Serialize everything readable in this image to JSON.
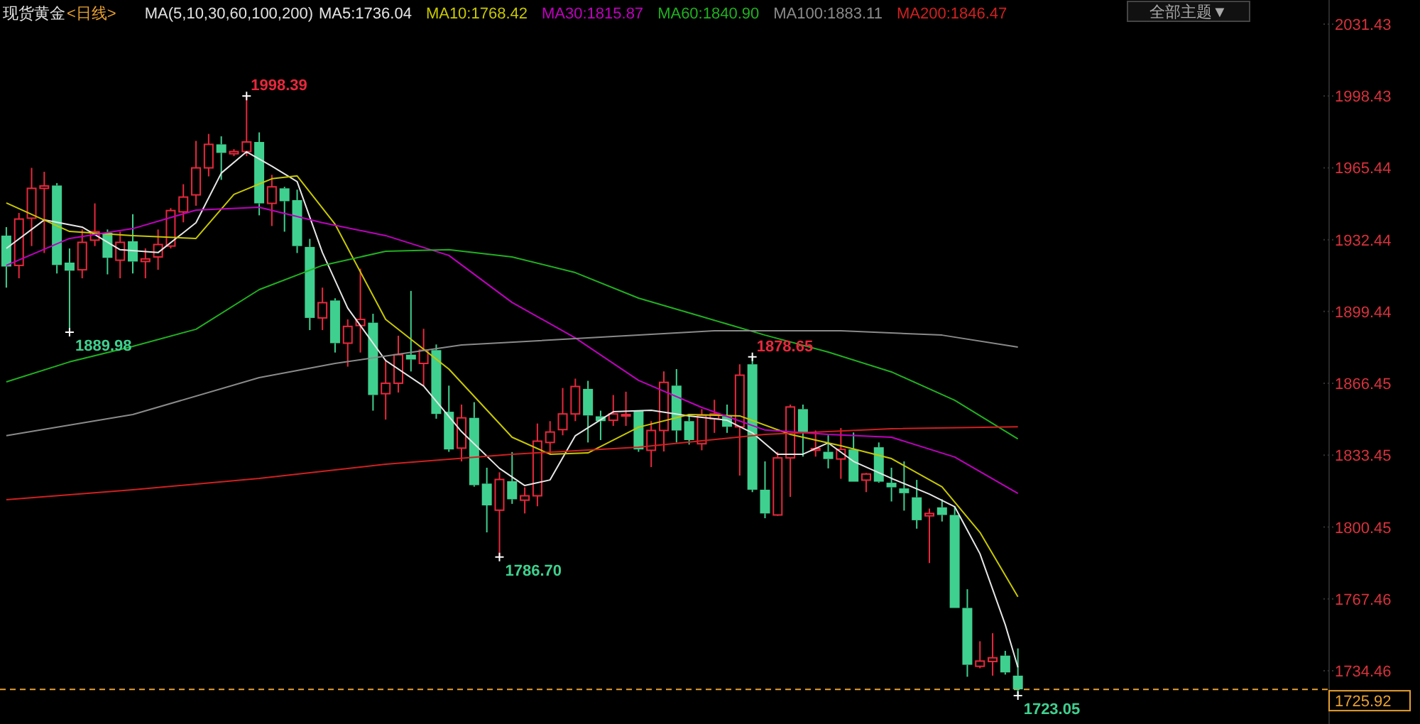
{
  "chart_data": {
    "type": "candlestick",
    "title": "现货黄金",
    "subtitle": "<日线>",
    "legend_title": "MA(5,10,30,60,100,200)",
    "legend": "top",
    "categories": [
      null,
      null,
      null,
      null,
      null,
      null,
      null,
      null,
      null,
      null,
      null,
      null,
      null,
      null,
      null,
      null,
      null,
      null,
      null,
      null,
      null,
      null,
      null,
      null,
      null,
      null,
      null,
      null,
      null,
      null,
      null,
      null,
      null,
      null,
      null,
      null,
      null,
      null,
      null,
      null,
      null,
      null,
      null,
      null,
      null,
      null,
      null,
      null,
      null,
      null,
      null,
      null,
      null,
      null,
      null,
      null,
      null,
      null,
      null,
      null,
      null,
      null,
      null,
      null,
      null,
      null,
      null,
      null,
      null,
      null,
      null,
      null,
      null,
      null,
      null,
      null,
      null,
      null,
      null,
      null,
      null,
      null,
      null,
      null,
      null,
      null,
      null,
      null,
      null,
      null,
      null,
      null,
      null,
      null,
      null,
      null,
      null,
      null,
      null,
      null,
      null,
      null,
      null,
      null,
      null
    ],
    "ohlc": [
      [
        1934.3,
        1938.2,
        1910.4,
        1920.1
      ],
      [
        1920.6,
        1944.7,
        1914.7,
        1941.9
      ],
      [
        1942.3,
        1965.4,
        1929.5,
        1956.0
      ],
      [
        1956.0,
        1963.6,
        1926.3,
        1957.1
      ],
      [
        1957.3,
        1958.4,
        1916.9,
        1920.8
      ],
      [
        1921.9,
        1928.4,
        1889.98,
        1918.2
      ],
      [
        1918.6,
        1937.1,
        1914.7,
        1931.2
      ],
      [
        1932.2,
        1949.1,
        1929.5,
        1936.1
      ],
      [
        1935.6,
        1937.1,
        1916.5,
        1924.1
      ],
      [
        1923.0,
        1936.1,
        1914.7,
        1931.2
      ],
      [
        1931.7,
        1944.1,
        1916.9,
        1922.4
      ],
      [
        1922.4,
        1928.4,
        1914.7,
        1923.6
      ],
      [
        1924.5,
        1937.1,
        1918.6,
        1930.2
      ],
      [
        1929.5,
        1946.9,
        1928.4,
        1945.8
      ],
      [
        1945.2,
        1957.9,
        1940.4,
        1952.0
      ],
      [
        1953.0,
        1977.8,
        1948.0,
        1965.4
      ],
      [
        1965.4,
        1981.0,
        1961.5,
        1976.2
      ],
      [
        1976.2,
        1979.9,
        1959.9,
        1972.3
      ],
      [
        1971.9,
        1974.0,
        1970.8,
        1972.9
      ],
      [
        1972.9,
        1998.39,
        1970.8,
        1977.3
      ],
      [
        1977.3,
        1981.7,
        1943.6,
        1949.1
      ],
      [
        1949.1,
        1962.2,
        1938.7,
        1956.7
      ],
      [
        1956.0,
        1956.7,
        1936.1,
        1950.1
      ],
      [
        1950.6,
        1955.4,
        1926.3,
        1929.5
      ],
      [
        1929.1,
        1932.8,
        1890.9,
        1896.5
      ],
      [
        1896.5,
        1910.4,
        1890.9,
        1903.5
      ],
      [
        1904.5,
        1905.5,
        1880.6,
        1884.9
      ],
      [
        1884.9,
        1895.8,
        1874.1,
        1892.6
      ],
      [
        1893.0,
        1919.1,
        1880.6,
        1895.8
      ],
      [
        1894.3,
        1898.4,
        1853.9,
        1861.1
      ],
      [
        1861.7,
        1877.4,
        1849.8,
        1866.5
      ],
      [
        1866.5,
        1888.3,
        1862.2,
        1879.6
      ],
      [
        1879.6,
        1908.9,
        1871.9,
        1877.4
      ],
      [
        1875.6,
        1891.5,
        1865.4,
        1881.7
      ],
      [
        1881.7,
        1884.3,
        1850.2,
        1852.4
      ],
      [
        1853.4,
        1865.4,
        1835.0,
        1836.1
      ],
      [
        1836.7,
        1856.7,
        1830.6,
        1850.6
      ],
      [
        1850.6,
        1857.8,
        1819.0,
        1819.7
      ],
      [
        1820.4,
        1827.7,
        1798.0,
        1810.4
      ],
      [
        1808.2,
        1825.6,
        1786.7,
        1822.3
      ],
      [
        1821.5,
        1834.9,
        1811.1,
        1813.2
      ],
      [
        1812.8,
        1818.7,
        1806.7,
        1814.8
      ],
      [
        1814.8,
        1848.0,
        1810.0,
        1839.9
      ],
      [
        1839.3,
        1849.1,
        1833.9,
        1844.1
      ],
      [
        1845.2,
        1864.3,
        1842.6,
        1852.4
      ],
      [
        1852.4,
        1868.6,
        1849.1,
        1865.0
      ],
      [
        1863.9,
        1867.6,
        1839.3,
        1851.7
      ],
      [
        1851.3,
        1853.9,
        1840.4,
        1849.1
      ],
      [
        1849.5,
        1861.1,
        1846.9,
        1852.4
      ],
      [
        1851.5,
        1862.6,
        1846.9,
        1852.1
      ],
      [
        1853.9,
        1853.9,
        1835.0,
        1836.1
      ],
      [
        1835.7,
        1849.1,
        1828.0,
        1844.8
      ],
      [
        1844.8,
        1871.9,
        1835.2,
        1866.9
      ],
      [
        1865.4,
        1873.0,
        1839.3,
        1844.8
      ],
      [
        1849.1,
        1852.4,
        1838.3,
        1840.4
      ],
      [
        1838.7,
        1854.6,
        1835.7,
        1851.7
      ],
      [
        1850.2,
        1858.9,
        1843.7,
        1852.4
      ],
      [
        1851.3,
        1856.7,
        1843.7,
        1846.5
      ],
      [
        1846.5,
        1875.2,
        1824.1,
        1870.2
      ],
      [
        1875.2,
        1878.65,
        1816.5,
        1817.6
      ],
      [
        1817.6,
        1830.6,
        1804.5,
        1806.7
      ],
      [
        1806.0,
        1835.0,
        1805.6,
        1832.2
      ],
      [
        1832.2,
        1856.7,
        1814.3,
        1855.6
      ],
      [
        1854.6,
        1856.7,
        1832.8,
        1843.7
      ],
      [
        1835.7,
        1844.8,
        1832.8,
        1836.5
      ],
      [
        1835.0,
        1842.6,
        1827.4,
        1831.7
      ],
      [
        1831.7,
        1845.9,
        1822.6,
        1836.1
      ],
      [
        1836.1,
        1843.9,
        1821.3,
        1821.3
      ],
      [
        1822.0,
        1825.3,
        1816.5,
        1824.8
      ],
      [
        1837.1,
        1839.3,
        1820.8,
        1821.3
      ],
      [
        1820.8,
        1827.7,
        1812.2,
        1818.7
      ],
      [
        1818.2,
        1830.6,
        1808.0,
        1816.0
      ],
      [
        1814.1,
        1822.1,
        1799.7,
        1803.6
      ],
      [
        1805.6,
        1808.9,
        1783.9,
        1806.7
      ],
      [
        1809.5,
        1813.2,
        1803.0,
        1806.0
      ],
      [
        1806.0,
        1809.9,
        1763.3,
        1763.3
      ],
      [
        1763.3,
        1771.9,
        1731.7,
        1737.2
      ],
      [
        1736.5,
        1748.0,
        1735.6,
        1738.9
      ],
      [
        1738.7,
        1751.7,
        1732.2,
        1740.4
      ],
      [
        1741.4,
        1743.6,
        1732.7,
        1733.7
      ],
      [
        1732.2,
        1744.7,
        1723.05,
        1725.92
      ],
      null,
      null,
      null,
      null,
      null,
      null,
      null,
      null,
      null,
      null,
      null,
      null,
      null,
      null,
      null,
      null,
      null,
      null,
      null,
      null,
      null,
      null,
      null,
      null
    ],
    "colors": [
      "#3fd08f",
      "#e8283c",
      "#e8283c",
      "#e8283c",
      "#3fd08f",
      "#3fd08f",
      "#e8283c",
      "#e8283c",
      "#3fd08f",
      "#e8283c",
      "#3fd08f",
      "#e8283c",
      "#e8283c",
      "#e8283c",
      "#e8283c",
      "#e8283c",
      "#e8283c",
      "#3fd08f",
      "#e8283c",
      "#e8283c",
      "#3fd08f",
      "#e8283c",
      "#3fd08f",
      "#3fd08f",
      "#3fd08f",
      "#e8283c",
      "#3fd08f",
      "#e8283c",
      "#e8283c",
      "#3fd08f",
      "#e8283c",
      "#e8283c",
      "#3fd08f",
      "#e8283c",
      "#3fd08f",
      "#3fd08f",
      "#e8283c",
      "#3fd08f",
      "#3fd08f",
      "#e8283c",
      "#3fd08f",
      "#e8283c",
      "#e8283c",
      "#e8283c",
      "#e8283c",
      "#e8283c",
      "#3fd08f",
      "#3fd08f",
      "#e8283c",
      "#e8283c",
      "#3fd08f",
      "#e8283c",
      "#e8283c",
      "#3fd08f",
      "#3fd08f",
      "#e8283c",
      "#e8283c",
      "#3fd08f",
      "#e8283c",
      "#3fd08f",
      "#3fd08f",
      "#e8283c",
      "#e8283c",
      "#3fd08f",
      "#e8283c",
      "#3fd08f",
      "#e8283c",
      "#3fd08f",
      "#e8283c",
      "#3fd08f",
      "#3fd08f",
      "#3fd08f",
      "#3fd08f",
      "#e8283c",
      "#3fd08f",
      "#3fd08f",
      "#3fd08f",
      "#e8283c",
      "#e8283c",
      "#3fd08f",
      "#3fd08f",
      null,
      null,
      null,
      null,
      null,
      null,
      null,
      null,
      null,
      null,
      null,
      null,
      null,
      null,
      null,
      null,
      null,
      null,
      null,
      null,
      null,
      null,
      null,
      null
    ],
    "series": [
      {
        "name": "MA5:1736.04",
        "type": "line",
        "color": "#e6e6e6",
        "values": [
          1928.4,
          null,
          null,
          1941.5,
          null,
          null,
          1938.2,
          null,
          null,
          1927.8,
          null,
          null,
          1926.5,
          null,
          null,
          1940.2,
          null,
          1963.0,
          null,
          1972.8,
          null,
          1966.2,
          null,
          1959.1,
          null,
          1926.5,
          null,
          1901.0,
          null,
          null,
          1876.9,
          null,
          null,
          1865.2,
          null,
          null,
          1844.3,
          null,
          null,
          1827.4,
          null,
          1819.5,
          null,
          1822.1,
          null,
          1842.4,
          null,
          null,
          1853.4,
          null,
          null,
          1854.1,
          null,
          null,
          1851.5,
          null,
          null,
          1849.5,
          null,
          1843.7,
          null,
          1833.9,
          null,
          1833.9,
          null,
          1839.1,
          null,
          1830.6,
          null,
          null,
          1822.8,
          null,
          null,
          1815.6,
          null,
          1809.8,
          null,
          1788.2,
          null,
          1755.6,
          1736.0,
          null,
          null,
          null,
          null,
          null,
          null,
          null,
          null,
          null,
          null,
          null,
          null,
          null,
          null,
          null,
          null,
          null,
          null,
          null,
          null,
          null,
          null,
          null,
          null
        ]
      },
      {
        "name": "MA10:1768.42",
        "type": "line",
        "color": "#c8c800",
        "values": [
          1949.3,
          null,
          null,
          null,
          null,
          1936.2,
          null,
          null,
          null,
          null,
          1934.3,
          null,
          null,
          null,
          null,
          1933.0,
          null,
          null,
          1953.2,
          null,
          null,
          1960.4,
          null,
          1961.7,
          null,
          null,
          1939.5,
          null,
          null,
          null,
          1895.8,
          null,
          null,
          null,
          null,
          1873.0,
          null,
          null,
          null,
          null,
          1841.7,
          null,
          null,
          1833.9,
          null,
          null,
          1834.5,
          null,
          null,
          null,
          1846.3,
          null,
          null,
          null,
          1852.1,
          null,
          null,
          null,
          1851.5,
          null,
          null,
          null,
          1843.0,
          null,
          null,
          null,
          1837.8,
          null,
          null,
          null,
          1831.9,
          null,
          null,
          null,
          1818.9,
          null,
          null,
          1798.0,
          null,
          null,
          1768.4,
          null,
          null,
          null,
          null,
          null,
          null,
          null,
          null,
          null,
          null,
          null,
          null,
          null,
          null,
          null,
          null,
          null,
          null,
          null,
          null,
          null,
          null,
          null,
          null
        ]
      },
      {
        "name": "MA30:1815.87",
        "type": "line",
        "color": "#c000c0",
        "values": [
          1920.6,
          null,
          null,
          null,
          null,
          1933.0,
          null,
          null,
          null,
          null,
          1937.5,
          null,
          null,
          null,
          null,
          1946.0,
          null,
          null,
          null,
          null,
          1947.3,
          null,
          null,
          null,
          null,
          1940.2,
          null,
          null,
          null,
          null,
          1934.3,
          null,
          null,
          null,
          null,
          1925.2,
          null,
          null,
          null,
          null,
          1903.6,
          null,
          null,
          null,
          null,
          1887.3,
          null,
          null,
          null,
          null,
          1867.8,
          null,
          null,
          null,
          null,
          1855.4,
          null,
          null,
          null,
          null,
          1845.0,
          null,
          null,
          null,
          null,
          1843.0,
          null,
          null,
          null,
          null,
          1841.7,
          null,
          null,
          null,
          null,
          1832.6,
          null,
          null,
          null,
          null,
          1815.9,
          null,
          null,
          null,
          null,
          null,
          null,
          null,
          null,
          null,
          null,
          null,
          null,
          null,
          null,
          null,
          null,
          null,
          null,
          null,
          null,
          null,
          null,
          null,
          null
        ]
      },
      {
        "name": "MA60:1840.90",
        "type": "line",
        "color": "#20b020",
        "values": [
          1867.1,
          null,
          null,
          null,
          null,
          1876.3,
          null,
          null,
          null,
          null,
          1883.4,
          null,
          null,
          null,
          null,
          1891.3,
          null,
          null,
          null,
          null,
          1909.5,
          null,
          null,
          null,
          null,
          1920.6,
          null,
          null,
          null,
          null,
          1927.1,
          null,
          null,
          null,
          null,
          1927.8,
          null,
          null,
          null,
          null,
          1924.5,
          null,
          null,
          null,
          null,
          1917.3,
          null,
          null,
          null,
          null,
          1905.6,
          null,
          null,
          null,
          null,
          1897.1,
          null,
          null,
          null,
          null,
          1888.6,
          null,
          null,
          null,
          null,
          1880.8,
          null,
          null,
          null,
          null,
          1871.7,
          null,
          null,
          null,
          null,
          1858.7,
          null,
          null,
          null,
          null,
          1840.9,
          null,
          null,
          null,
          null,
          null,
          null,
          null,
          null,
          null,
          null,
          null,
          null,
          null,
          null,
          null,
          null,
          null,
          null,
          null,
          null,
          null,
          null,
          null,
          null
        ]
      },
      {
        "name": "MA100:1883.11",
        "type": "line",
        "color": "#8a8a8a",
        "values": [
          1842.4,
          null,
          null,
          null,
          null,
          null,
          null,
          null,
          null,
          null,
          1852.1,
          null,
          null,
          null,
          null,
          null,
          null,
          null,
          null,
          null,
          1869.1,
          null,
          null,
          null,
          null,
          null,
          1875.6,
          null,
          null,
          null,
          null,
          null,
          null,
          null,
          null,
          null,
          1884.1,
          null,
          null,
          null,
          null,
          null,
          null,
          null,
          null,
          null,
          1887.3,
          null,
          null,
          null,
          null,
          null,
          null,
          null,
          null,
          null,
          1890.6,
          null,
          null,
          null,
          null,
          null,
          null,
          null,
          null,
          null,
          1890.6,
          null,
          null,
          null,
          null,
          null,
          null,
          null,
          1888.6,
          null,
          null,
          null,
          null,
          null,
          1883.1,
          null,
          null,
          null,
          null,
          null,
          null,
          null,
          null,
          null,
          null,
          null,
          null,
          null,
          null,
          null,
          null,
          null,
          null,
          null,
          null,
          null,
          null,
          null,
          null
        ]
      },
      {
        "name": "MA200:1846.47",
        "type": "line",
        "color": "#d02020",
        "values": [
          1813.0,
          null,
          null,
          null,
          null,
          null,
          null,
          null,
          null,
          null,
          1817.6,
          null,
          null,
          null,
          null,
          null,
          null,
          null,
          null,
          null,
          1822.8,
          null,
          null,
          null,
          null,
          null,
          null,
          null,
          null,
          null,
          1829.3,
          null,
          null,
          null,
          null,
          null,
          null,
          null,
          null,
          null,
          1833.9,
          null,
          null,
          null,
          null,
          null,
          null,
          null,
          null,
          null,
          1837.1,
          null,
          null,
          null,
          null,
          null,
          null,
          null,
          null,
          null,
          1843.0,
          null,
          null,
          null,
          null,
          null,
          null,
          null,
          null,
          null,
          1845.6,
          null,
          null,
          null,
          null,
          null,
          null,
          null,
          null,
          null,
          1846.5,
          null,
          null,
          null,
          null,
          null,
          null,
          null,
          null,
          null,
          null,
          null,
          null,
          null,
          null,
          null,
          null,
          null,
          null,
          null,
          null,
          null,
          null,
          null,
          null
        ]
      }
    ],
    "ylim": [
      1710,
      2042.5
    ],
    "yticks": [
      {
        "value": 2031.43,
        "label": "2031.43"
      },
      {
        "value": 1998.43,
        "label": "1998.43"
      },
      {
        "value": 1965.44,
        "label": "1965.44"
      },
      {
        "value": 1932.44,
        "label": "1932.44"
      },
      {
        "value": 1899.44,
        "label": "1899.44"
      },
      {
        "value": 1866.45,
        "label": "1866.45"
      },
      {
        "value": 1833.45,
        "label": "1833.45"
      },
      {
        "value": 1800.45,
        "label": "1800.45"
      },
      {
        "value": 1767.46,
        "label": "1767.46"
      },
      {
        "value": 1734.46,
        "label": "1734.46"
      }
    ],
    "ref_lines": [
      {
        "axis": "y",
        "value": 1725.92,
        "label": "1725.92",
        "color": "#e8a030",
        "line_style": "dashed"
      }
    ],
    "annotations": [
      "1998.39",
      "1889.98",
      "1786.70",
      "1878.65",
      "1723.05",
      "全部主题▼"
    ]
  }
}
